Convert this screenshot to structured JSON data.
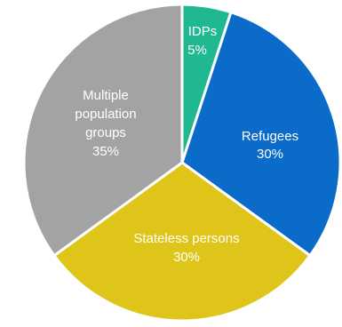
{
  "chart_data": {
    "type": "pie",
    "title": "",
    "slices": [
      {
        "label": "IDPs",
        "value": 5,
        "value_label": "5%",
        "color": "#1fb890"
      },
      {
        "label": "Refugees",
        "value": 30,
        "value_label": "30%",
        "color": "#0a6cc8"
      },
      {
        "label": "Stateless persons",
        "value": 30,
        "value_label": "30%",
        "color": "#dfc51a"
      },
      {
        "label": "Multiple population groups",
        "value": 35,
        "value_label": "35%",
        "color": "#a3a3a3"
      }
    ],
    "legend": "none",
    "labels_inside": true
  }
}
